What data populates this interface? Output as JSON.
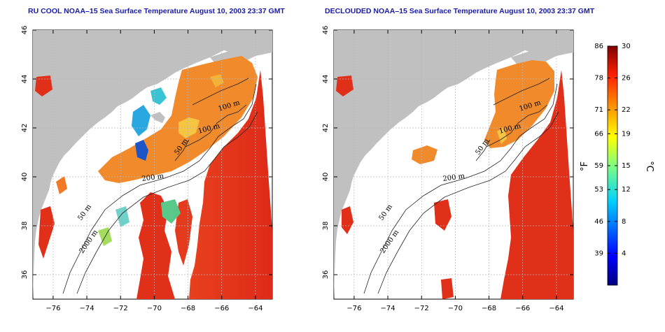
{
  "maps": [
    {
      "title": "RU COOL NOAA–15 Sea Surface Temperature August 10, 2003 23:37 GMT",
      "variant": "cool"
    },
    {
      "title": "DECLOUDED NOAA–15 Sea Surface Temperature August 10, 2003 23:37 GMT",
      "variant": "declouded"
    }
  ],
  "axes": {
    "x_ticks": [
      "−76",
      "−74",
      "−72",
      "−70",
      "−68",
      "−66",
      "−64"
    ],
    "x_values": [
      -76,
      -74,
      -72,
      -70,
      -68,
      -66,
      -64
    ],
    "y_ticks": [
      "36",
      "38",
      "40",
      "42",
      "44",
      "46"
    ],
    "y_values": [
      36,
      38,
      40,
      42,
      44,
      46
    ],
    "x_range": [
      -77.2,
      -63.0
    ],
    "y_range": [
      35.0,
      46.0
    ],
    "grid": true
  },
  "contour_labels": [
    "100 m",
    "100 m",
    "50 m",
    "200 m",
    "50 m",
    "2000 m"
  ],
  "colorbar": {
    "fahrenheit_ticks": [
      "86",
      "78",
      "71",
      "66",
      "59",
      "53",
      "46",
      "39"
    ],
    "celsius_ticks": [
      "30",
      "26",
      "22",
      "19",
      "15",
      "12",
      "8",
      "4"
    ],
    "celsius_values": [
      30,
      26,
      22,
      19,
      15,
      12,
      8,
      4
    ],
    "range_c": [
      0,
      30
    ],
    "fahrenheit_unit": "°F",
    "celsius_unit": "°C"
  },
  "colors": {
    "land": "#c0c0c0",
    "warm": "#e0301a",
    "shelf": "#f08a2a",
    "title": "#1a1aa8"
  }
}
